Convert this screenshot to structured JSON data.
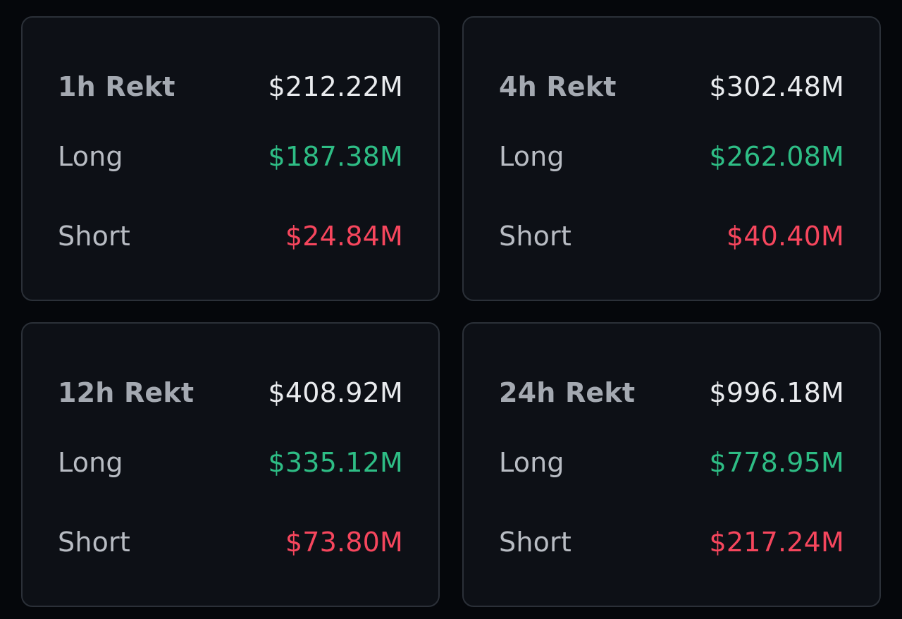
{
  "colors": {
    "total": "#e9ebee",
    "long": "#2ebd85",
    "short": "#f6465d"
  },
  "cards": [
    {
      "title": "1h Rekt",
      "total": "$212.22M",
      "long_label": "Long",
      "long": "$187.38M",
      "short_label": "Short",
      "short": "$24.84M"
    },
    {
      "title": "4h Rekt",
      "total": "$302.48M",
      "long_label": "Long",
      "long": "$262.08M",
      "short_label": "Short",
      "short": "$40.40M"
    },
    {
      "title": "12h Rekt",
      "total": "$408.92M",
      "long_label": "Long",
      "long": "$335.12M",
      "short_label": "Short",
      "short": "$73.80M"
    },
    {
      "title": "24h Rekt",
      "total": "$996.18M",
      "long_label": "Long",
      "long": "$778.95M",
      "short_label": "Short",
      "short": "$217.24M"
    }
  ]
}
